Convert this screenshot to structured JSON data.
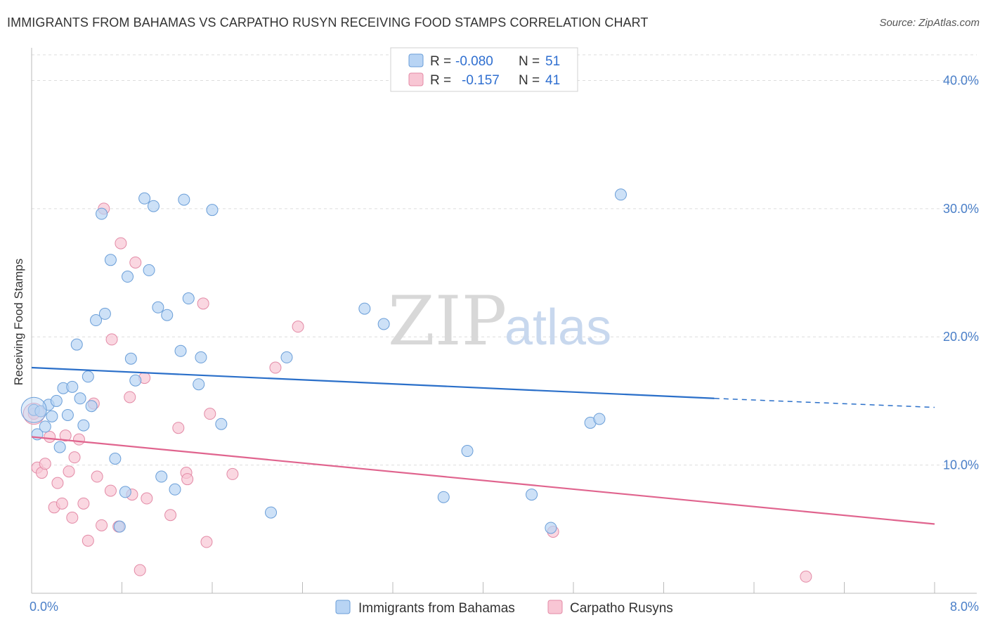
{
  "title": "IMMIGRANTS FROM BAHAMAS VS CARPATHO RUSYN RECEIVING FOOD STAMPS CORRELATION CHART",
  "source": "Source: ZipAtlas.com",
  "watermark": {
    "zip": "ZIP",
    "atlas": "atlas"
  },
  "colors": {
    "blue_fill": "#b8d4f4",
    "blue_stroke": "#6a9ed8",
    "blue_line": "#2a6fc9",
    "pink_fill": "#f8c6d4",
    "pink_stroke": "#e38aa6",
    "pink_line": "#e0648e",
    "grid": "#dddddd",
    "tick_text": "#4a7fc8"
  },
  "legend": {
    "rows": [
      {
        "r_label": "R =",
        "r_value": "-0.080",
        "n_label": "N =",
        "n_value": "51"
      },
      {
        "r_label": "R =",
        "r_value": "-0.157",
        "n_label": "N =",
        "n_value": "41"
      }
    ]
  },
  "chart_data": {
    "type": "scatter",
    "title": "IMMIGRANTS FROM BAHAMAS VS CARPATHO RUSYN RECEIVING FOOD STAMPS CORRELATION CHART",
    "xlabel": "",
    "ylabel": "Receiving Food Stamps",
    "xlim": [
      0.0,
      8.0
    ],
    "ylim": [
      0.0,
      42.0
    ],
    "x_tick_labels": [
      "0.0%",
      "8.0%"
    ],
    "y_ticks": [
      10,
      20,
      30,
      40
    ],
    "y_tick_labels": [
      "10.0%",
      "20.0%",
      "30.0%",
      "40.0%"
    ],
    "legend_position": "top-center",
    "series": [
      {
        "name": "Immigrants from Bahamas",
        "r": -0.08,
        "n": 51,
        "trend": {
          "x0": 0.0,
          "y0": 17.6,
          "x1": 6.05,
          "y1": 15.2,
          "dash_x1": 8.0,
          "dash_y1": 14.5
        },
        "points": [
          [
            0.02,
            14.3
          ],
          [
            0.05,
            12.4
          ],
          [
            0.08,
            14.2
          ],
          [
            0.12,
            13.0
          ],
          [
            0.15,
            14.7
          ],
          [
            0.18,
            13.8
          ],
          [
            0.22,
            15.0
          ],
          [
            0.25,
            11.4
          ],
          [
            0.28,
            16.0
          ],
          [
            0.32,
            13.9
          ],
          [
            0.36,
            16.1
          ],
          [
            0.4,
            19.4
          ],
          [
            0.43,
            15.2
          ],
          [
            0.46,
            13.1
          ],
          [
            0.5,
            16.9
          ],
          [
            0.53,
            14.6
          ],
          [
            0.57,
            21.3
          ],
          [
            0.62,
            29.6
          ],
          [
            0.65,
            21.8
          ],
          [
            0.7,
            26.0
          ],
          [
            0.74,
            10.5
          ],
          [
            0.78,
            5.2
          ],
          [
            0.85,
            24.7
          ],
          [
            0.88,
            18.3
          ],
          [
            0.92,
            16.6
          ],
          [
            1.0,
            30.8
          ],
          [
            1.04,
            25.2
          ],
          [
            1.08,
            30.2
          ],
          [
            1.12,
            22.3
          ],
          [
            1.15,
            9.1
          ],
          [
            1.2,
            21.7
          ],
          [
            1.27,
            8.1
          ],
          [
            1.32,
            18.9
          ],
          [
            1.35,
            30.7
          ],
          [
            1.39,
            23.0
          ],
          [
            1.48,
            16.3
          ],
          [
            1.5,
            18.4
          ],
          [
            1.6,
            29.9
          ],
          [
            1.68,
            13.2
          ],
          [
            0.83,
            7.9
          ],
          [
            2.12,
            6.3
          ],
          [
            2.26,
            18.4
          ],
          [
            2.95,
            22.2
          ],
          [
            3.12,
            21.0
          ],
          [
            3.65,
            7.5
          ],
          [
            3.86,
            11.1
          ],
          [
            4.43,
            7.7
          ],
          [
            4.6,
            5.1
          ],
          [
            4.95,
            13.3
          ],
          [
            5.03,
            13.6
          ],
          [
            5.22,
            31.1
          ]
        ]
      },
      {
        "name": "Carpatho Rusyns",
        "r": -0.157,
        "n": 41,
        "trend": {
          "x0": 0.0,
          "y0": 12.2,
          "x1": 8.0,
          "y1": 5.4
        },
        "points": [
          [
            0.02,
            14.0
          ],
          [
            0.05,
            9.8
          ],
          [
            0.09,
            9.4
          ],
          [
            0.12,
            10.1
          ],
          [
            0.16,
            12.2
          ],
          [
            0.2,
            6.7
          ],
          [
            0.23,
            8.6
          ],
          [
            0.27,
            7.0
          ],
          [
            0.3,
            12.3
          ],
          [
            0.33,
            9.5
          ],
          [
            0.36,
            5.9
          ],
          [
            0.38,
            10.6
          ],
          [
            0.42,
            12.0
          ],
          [
            0.46,
            7.0
          ],
          [
            0.5,
            4.1
          ],
          [
            0.55,
            14.8
          ],
          [
            0.58,
            9.1
          ],
          [
            0.62,
            5.3
          ],
          [
            0.64,
            30.0
          ],
          [
            0.7,
            8.0
          ],
          [
            0.71,
            19.8
          ],
          [
            0.77,
            5.2
          ],
          [
            0.79,
            27.3
          ],
          [
            0.87,
            15.3
          ],
          [
            0.89,
            7.7
          ],
          [
            0.92,
            25.8
          ],
          [
            0.96,
            1.8
          ],
          [
            1.0,
            16.8
          ],
          [
            1.02,
            7.4
          ],
          [
            1.23,
            6.1
          ],
          [
            1.3,
            12.9
          ],
          [
            1.37,
            9.4
          ],
          [
            1.38,
            8.9
          ],
          [
            1.52,
            22.6
          ],
          [
            1.55,
            4.0
          ],
          [
            1.58,
            14.0
          ],
          [
            1.78,
            9.3
          ],
          [
            2.16,
            17.6
          ],
          [
            2.36,
            20.8
          ],
          [
            4.62,
            4.8
          ],
          [
            6.86,
            1.3
          ]
        ]
      }
    ]
  }
}
